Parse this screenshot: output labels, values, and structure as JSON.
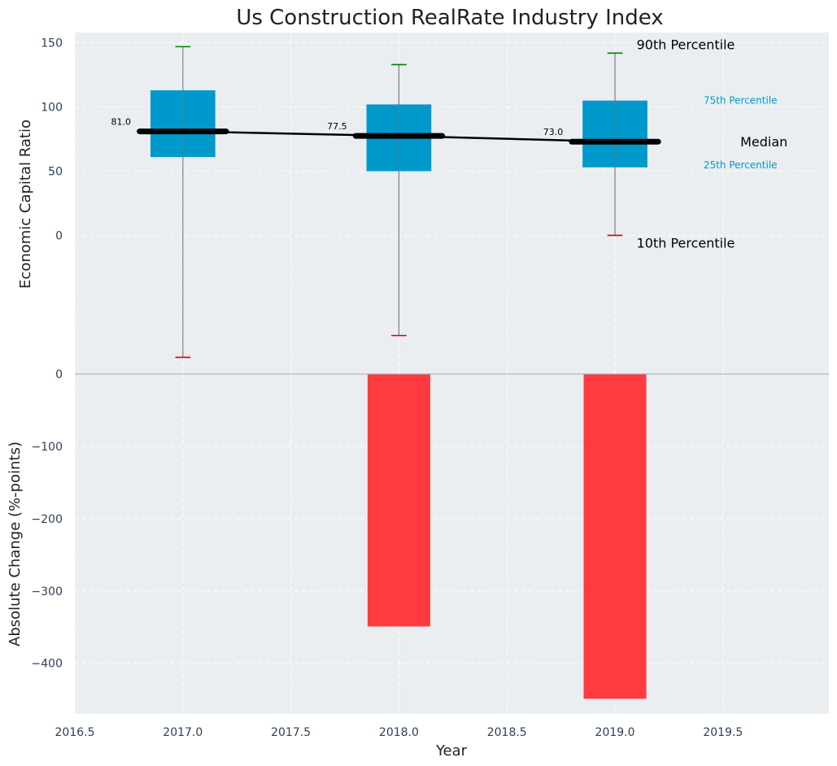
{
  "chart_data": {
    "title": "Us Construction RealRate Industry Index",
    "xlabel": "Year",
    "x_ticks": [
      "2016.5",
      "2017.0",
      "2017.5",
      "2018.0",
      "2018.5",
      "2019.0",
      "2019.5"
    ],
    "x_tick_values": [
      2016.5,
      2017.0,
      2017.5,
      2018.0,
      2018.5,
      2019.0,
      2019.5
    ],
    "xlim": [
      2016.5,
      2019.99
    ],
    "grid": true,
    "background": "#eaeef0",
    "panels": [
      {
        "type": "box",
        "ylabel": "Economic Capital Ratio",
        "ylim": [
          -108,
          158
        ],
        "y_ticks": [
          "0",
          "50",
          "100",
          "150"
        ],
        "y_tick_values": [
          0,
          50,
          100,
          150
        ],
        "box_color": "#0099cc",
        "median_line_color": "#000000",
        "p90_cap_color": "#008000",
        "p10_cap_color": "#dd0000",
        "boxes": [
          {
            "x": 2017.0,
            "p10": -95,
            "p25": 61,
            "median": 81.0,
            "p75": 113,
            "p90": 147,
            "median_label": "81.0"
          },
          {
            "x": 2018.0,
            "p10": -78,
            "p25": 50,
            "median": 77.5,
            "p75": 102,
            "p90": 133,
            "median_label": "77.5"
          },
          {
            "x": 2019.0,
            "p10": 0,
            "p25": 53,
            "median": 73.0,
            "p75": 105,
            "p90": 142,
            "median_label": "73.0"
          }
        ],
        "legend_annotations": {
          "p90": "90th Percentile",
          "p75": "75th Percentile",
          "median": "Median",
          "p25": "25th Percentile",
          "p10": "10th Percentile"
        }
      },
      {
        "type": "bar",
        "ylabel": "Absolute Change (%-points)",
        "ylim": [
          -470,
          0
        ],
        "y_ticks": [
          "0",
          "−100",
          "−200",
          "−300",
          "−400"
        ],
        "y_tick_values": [
          0,
          -100,
          -200,
          -300,
          -400
        ],
        "bar_color": "#ff3b3f",
        "bars": [
          {
            "x": 2017.0,
            "value": 0
          },
          {
            "x": 2018.0,
            "value": -349
          },
          {
            "x": 2019.0,
            "value": -449
          }
        ]
      }
    ]
  }
}
